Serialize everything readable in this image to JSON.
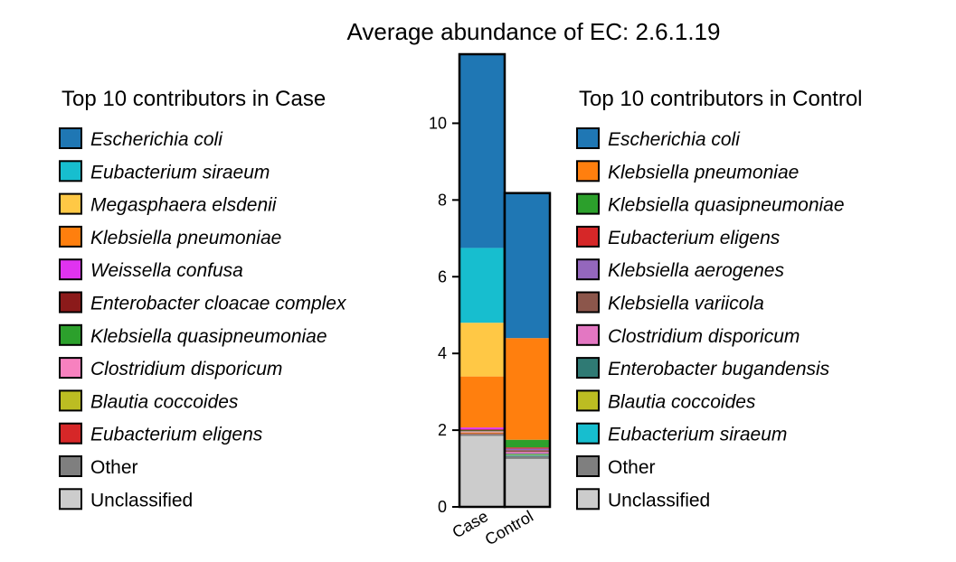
{
  "chart_data": {
    "type": "bar",
    "stacked": true,
    "title": "Average abundance of EC: 2.6.1.19",
    "xlabel": "",
    "ylabel": "",
    "categories": [
      "Case",
      "Control"
    ],
    "ylim": [
      0,
      11.8
    ],
    "yticks": [
      0,
      2,
      4,
      6,
      8,
      10
    ],
    "grid": false,
    "legends": [
      {
        "title": "Top 10 contributors in Case",
        "placement": "left",
        "entries": [
          {
            "label": "Escherichia coli",
            "color": "#1f77b4",
            "italic": true
          },
          {
            "label": "Eubacterium siraeum",
            "color": "#17becf",
            "italic": true
          },
          {
            "label": "Megasphaera elsdenii",
            "color": "#ffc845",
            "italic": true
          },
          {
            "label": "Klebsiella pneumoniae",
            "color": "#ff7f0e",
            "italic": true
          },
          {
            "label": "Weissella confusa",
            "color": "#e033f0",
            "italic": true
          },
          {
            "label": "Enterobacter cloacae complex",
            "color": "#8b1a1a",
            "italic": true
          },
          {
            "label": "Klebsiella quasipneumoniae",
            "color": "#2ca02c",
            "italic": true
          },
          {
            "label": "Clostridium disporicum",
            "color": "#f781bf",
            "italic": true
          },
          {
            "label": "Blautia coccoides",
            "color": "#bcbd22",
            "italic": true
          },
          {
            "label": "Eubacterium eligens",
            "color": "#d62728",
            "italic": true
          },
          {
            "label": "Other",
            "color": "#7f7f7f",
            "italic": false
          },
          {
            "label": "Unclassified",
            "color": "#cccccc",
            "italic": false
          }
        ]
      },
      {
        "title": "Top 10 contributors in Control",
        "placement": "right",
        "entries": [
          {
            "label": "Escherichia coli",
            "color": "#1f77b4",
            "italic": true
          },
          {
            "label": "Klebsiella pneumoniae",
            "color": "#ff7f0e",
            "italic": true
          },
          {
            "label": "Klebsiella quasipneumoniae",
            "color": "#2ca02c",
            "italic": true
          },
          {
            "label": "Eubacterium eligens",
            "color": "#d62728",
            "italic": true
          },
          {
            "label": "Klebsiella aerogenes",
            "color": "#9467bd",
            "italic": true
          },
          {
            "label": "Klebsiella variicola",
            "color": "#8c564b",
            "italic": true
          },
          {
            "label": "Clostridium disporicum",
            "color": "#e377c2",
            "italic": true
          },
          {
            "label": "Enterobacter bugandensis",
            "color": "#2f7a74",
            "italic": true
          },
          {
            "label": "Blautia coccoides",
            "color": "#bcbd22",
            "italic": true
          },
          {
            "label": "Eubacterium siraeum",
            "color": "#17becf",
            "italic": true
          },
          {
            "label": "Other",
            "color": "#7f7f7f",
            "italic": false
          },
          {
            "label": "Unclassified",
            "color": "#cccccc",
            "italic": false
          }
        ]
      }
    ],
    "bars": [
      {
        "category": "Case",
        "segments": [
          {
            "name": "Unclassified",
            "value": 1.85,
            "color": "#cccccc"
          },
          {
            "name": "Other",
            "value": 0.05,
            "color": "#7f7f7f"
          },
          {
            "name": "Eubacterium eligens",
            "value": 0.02,
            "color": "#d62728"
          },
          {
            "name": "Blautia coccoides",
            "value": 0.02,
            "color": "#bcbd22"
          },
          {
            "name": "Clostridium disporicum",
            "value": 0.03,
            "color": "#f781bf"
          },
          {
            "name": "Klebsiella quasipneumoniae",
            "value": 0.02,
            "color": "#2ca02c"
          },
          {
            "name": "Enterobacter cloacae complex",
            "value": 0.03,
            "color": "#8b1a1a"
          },
          {
            "name": "Weissella confusa",
            "value": 0.05,
            "color": "#e033f0"
          },
          {
            "name": "Klebsiella pneumoniae",
            "value": 1.33,
            "color": "#ff7f0e"
          },
          {
            "name": "Megasphaera elsdenii",
            "value": 1.4,
            "color": "#ffc845"
          },
          {
            "name": "Eubacterium siraeum",
            "value": 1.95,
            "color": "#17becf"
          },
          {
            "name": "Escherichia coli",
            "value": 5.05,
            "color": "#1f77b4"
          }
        ]
      },
      {
        "category": "Control",
        "segments": [
          {
            "name": "Unclassified",
            "value": 1.25,
            "color": "#cccccc"
          },
          {
            "name": "Other",
            "value": 0.08,
            "color": "#7f7f7f"
          },
          {
            "name": "Eubacterium siraeum",
            "value": 0.02,
            "color": "#17becf"
          },
          {
            "name": "Blautia coccoides",
            "value": 0.02,
            "color": "#bcbd22"
          },
          {
            "name": "Enterobacter bugandensis",
            "value": 0.02,
            "color": "#2f7a74"
          },
          {
            "name": "Clostridium disporicum",
            "value": 0.04,
            "color": "#e377c2"
          },
          {
            "name": "Klebsiella variicola",
            "value": 0.05,
            "color": "#8c564b"
          },
          {
            "name": "Klebsiella aerogenes",
            "value": 0.04,
            "color": "#9467bd"
          },
          {
            "name": "Eubacterium eligens",
            "value": 0.03,
            "color": "#d62728"
          },
          {
            "name": "Klebsiella quasipneumoniae",
            "value": 0.2,
            "color": "#2ca02c"
          },
          {
            "name": "Klebsiella pneumoniae",
            "value": 2.65,
            "color": "#ff7f0e"
          },
          {
            "name": "Escherichia coli",
            "value": 3.78,
            "color": "#1f77b4"
          }
        ]
      }
    ]
  }
}
